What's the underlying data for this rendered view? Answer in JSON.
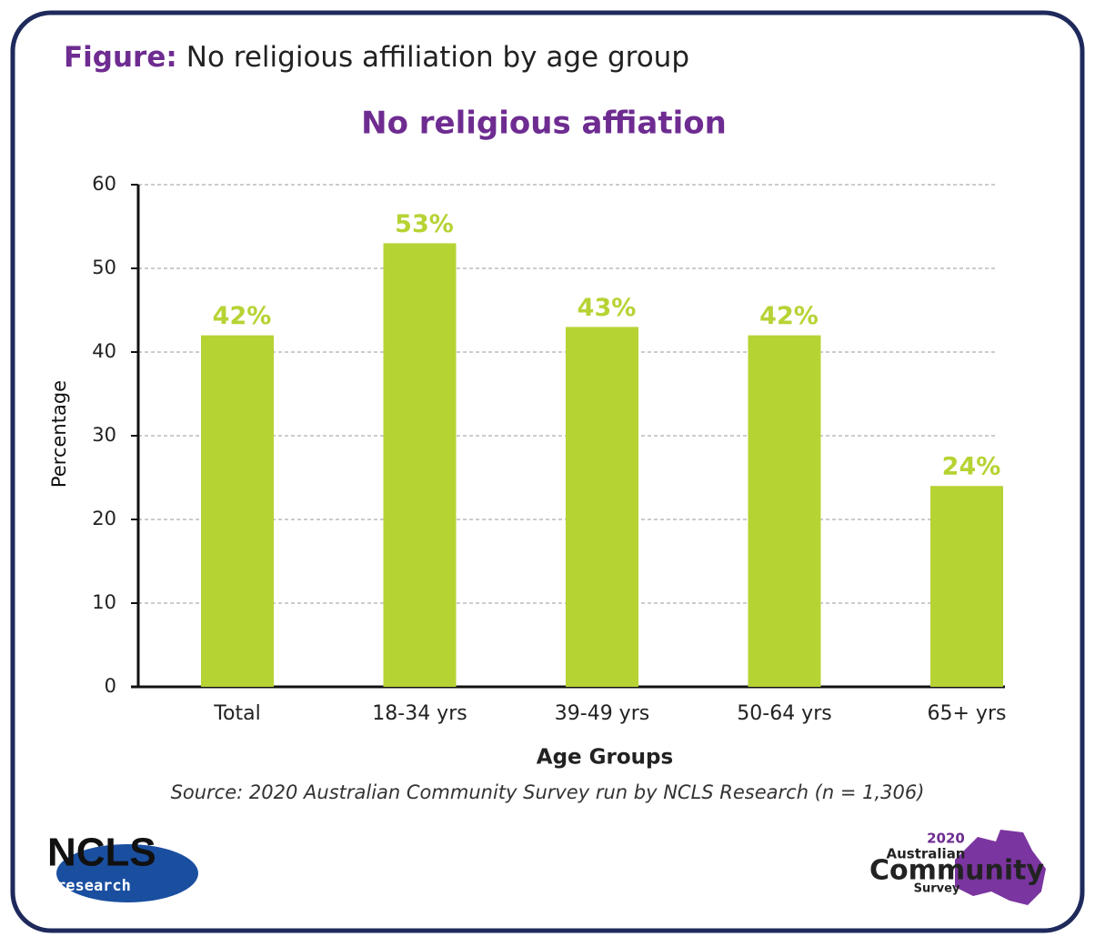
{
  "chart_data": {
    "type": "bar",
    "figure_prefix": "Figure:",
    "figure_caption": "No religious affiliation by age group",
    "title": "No religious affiation",
    "categories": [
      "Total",
      "18-34 yrs",
      "39-49 yrs",
      "50-64 yrs",
      "65+ yrs"
    ],
    "values": [
      42,
      53,
      43,
      42,
      24
    ],
    "value_labels": [
      "42%",
      "53%",
      "43%",
      "42%",
      "24%"
    ],
    "color": "#b6d334",
    "ylim": [
      0,
      60
    ],
    "yticks": [
      0,
      10,
      20,
      30,
      40,
      50,
      60
    ],
    "grid": true,
    "ylabel": "Percentage",
    "xlabel": "Age Groups",
    "source": "Source: 2020 Australian Community Survey run by NCLS Research (n = 1,306)"
  },
  "logos": {
    "ncls": "NCLS",
    "ncls_sub": "research",
    "survey_year": "2020",
    "survey_line1": "Australian",
    "survey_line2": "Community",
    "survey_line3": "Survey"
  }
}
